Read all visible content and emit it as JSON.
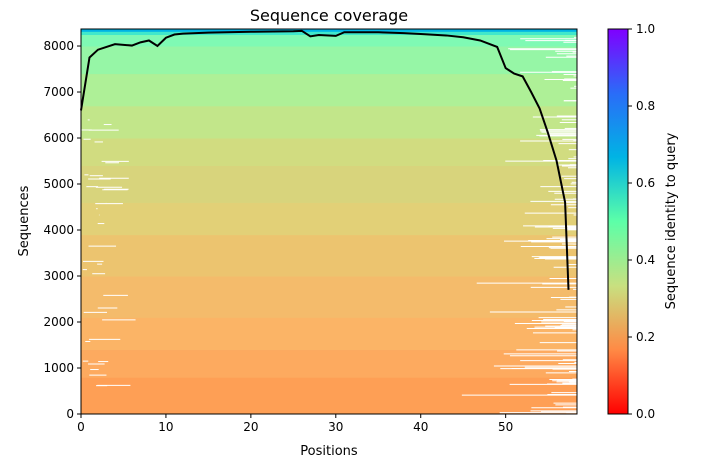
{
  "chart_data": {
    "type": "line",
    "title": "Sequence coverage",
    "xlabel": "Positions",
    "ylabel": "Sequences",
    "xlim": [
      0,
      58.4
    ],
    "ylim": [
      0,
      8370
    ],
    "xticks": [
      0,
      10,
      20,
      30,
      40,
      50
    ],
    "yticks": [
      0,
      1000,
      2000,
      3000,
      4000,
      5000,
      6000,
      7000,
      8000
    ],
    "coverage": {
      "x": [
        0,
        1,
        2,
        4,
        6,
        7,
        8,
        9,
        10,
        11,
        12,
        15,
        20,
        25,
        26,
        27,
        28,
        30,
        31,
        35,
        38,
        40,
        43,
        45,
        47,
        49,
        50,
        51,
        52,
        53,
        54,
        55,
        56,
        57,
        57.4
      ],
      "y": [
        6600,
        7750,
        7920,
        8040,
        8010,
        8080,
        8120,
        8000,
        8180,
        8250,
        8270,
        8290,
        8310,
        8320,
        8330,
        8210,
        8240,
        8220,
        8300,
        8300,
        8280,
        8260,
        8230,
        8190,
        8120,
        7980,
        7520,
        7400,
        7340,
        7000,
        6640,
        6100,
        5500,
        4600,
        2700
      ]
    },
    "identity_bands": [
      {
        "from": 0,
        "to": 800,
        "color": "#fe9f55"
      },
      {
        "from": 800,
        "to": 1400,
        "color": "#fdaa5f"
      },
      {
        "from": 1400,
        "to": 2100,
        "color": "#fbb466"
      },
      {
        "from": 2100,
        "to": 3000,
        "color": "#f4bb6b"
      },
      {
        "from": 3000,
        "to": 3900,
        "color": "#ecc46f"
      },
      {
        "from": 3900,
        "to": 4600,
        "color": "#e2d077"
      },
      {
        "from": 4600,
        "to": 5400,
        "color": "#d8d47c"
      },
      {
        "from": 5400,
        "to": 6000,
        "color": "#d1dc80"
      },
      {
        "from": 6000,
        "to": 6700,
        "color": "#c2e68a"
      },
      {
        "from": 6700,
        "to": 7400,
        "color": "#aef097"
      },
      {
        "from": 7400,
        "to": 8000,
        "color": "#96f6a6"
      },
      {
        "from": 8000,
        "to": 8250,
        "color": "#7ffab4"
      },
      {
        "from": 8250,
        "to": 8320,
        "color": "#40e8cc"
      },
      {
        "from": 8320,
        "to": 8370,
        "color": "#00b4e4"
      }
    ],
    "colorbar": {
      "label": "Sequence identity to query",
      "ticks": [
        "0.0",
        "0.2",
        "0.4",
        "0.6",
        "0.8",
        "1.0"
      ],
      "range": [
        0,
        1
      ],
      "colormap_stops": [
        "#ff0000",
        "#ff8a45",
        "#c8e080",
        "#5cffa8",
        "#00b4e4",
        "#2a6cf8",
        "#8000ff"
      ]
    }
  }
}
